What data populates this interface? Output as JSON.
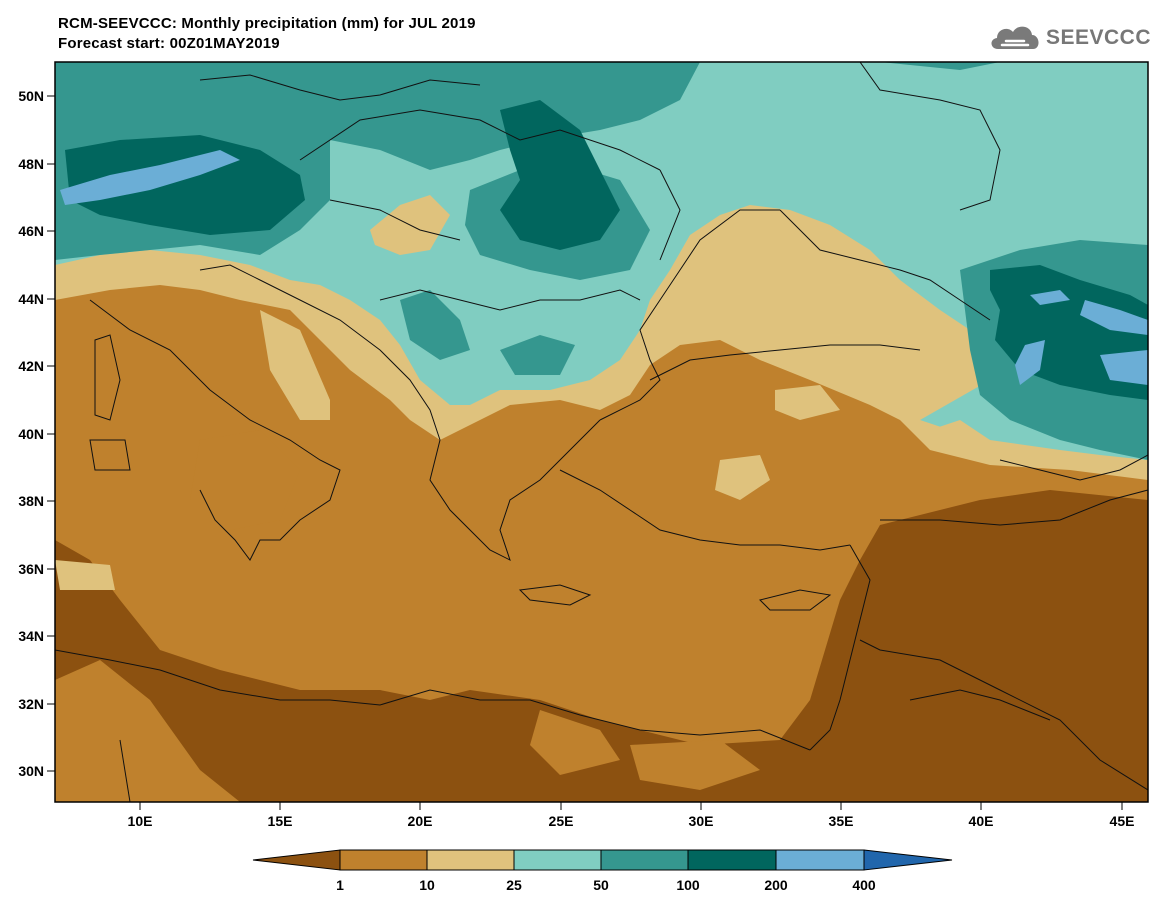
{
  "header": {
    "title": "RCM-SEEVCCC: Monthly precipitation (mm) for JUL 2019",
    "subtitle": "Forecast start: 00Z01MAY2019"
  },
  "logo": {
    "text": "SEEVCCC"
  },
  "map": {
    "lat_ticks": [
      "50N",
      "48N",
      "46N",
      "44N",
      "42N",
      "40N",
      "38N",
      "36N",
      "34N",
      "32N",
      "30N"
    ],
    "lon_ticks": [
      "10E",
      "15E",
      "20E",
      "25E",
      "30E",
      "35E",
      "40E",
      "45E"
    ]
  },
  "colorbar": {
    "labels": [
      "1",
      "10",
      "25",
      "50",
      "100",
      "200",
      "400"
    ],
    "colors": [
      "#8c5110",
      "#bf812d",
      "#dfc27d",
      "#80cdc1",
      "#35978f",
      "#01665e",
      "#6baed6",
      "#2166ac"
    ]
  }
}
